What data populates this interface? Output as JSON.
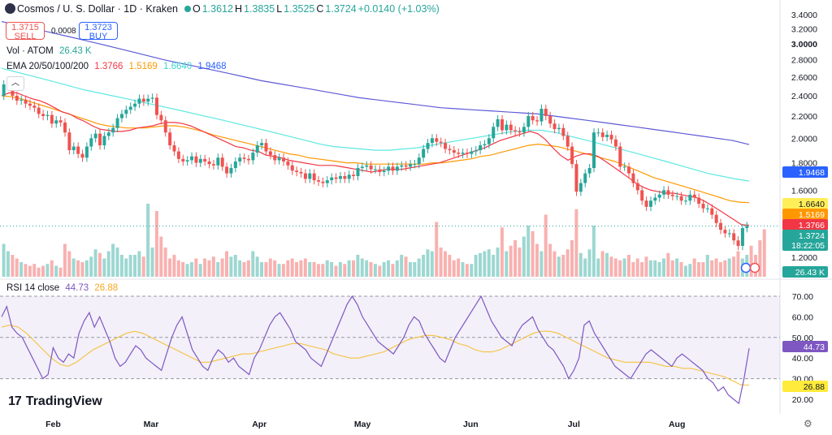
{
  "header": {
    "title": "Cosmos / U. S. Dollar · 1D · Kraken",
    "open_label": "O",
    "open": "1.3612",
    "high_label": "H",
    "high": "1.3835",
    "low_label": "L",
    "low": "1.3525",
    "close_label": "C",
    "close": "1.3724",
    "change": "+0.0140 (+1.03%)"
  },
  "trade": {
    "sell_price": "1.3715",
    "sell_label": "SELL",
    "spread": "0.0008",
    "buy_price": "1.3723",
    "buy_label": "BUY"
  },
  "indicators": {
    "vol_label": "Vol · ATOM",
    "vol_value": "26.43 K",
    "ema_label": "EMA 20/50/100/200",
    "ema20": "1.3766",
    "ema50": "1.5169",
    "ema100": "1.6640",
    "ema200": "1.9468",
    "rsi_label": "RSI 14 close",
    "rsi_value": "44.73",
    "rsi_ma": "26.88"
  },
  "price_axis": {
    "ticks": [
      "3.4000",
      "3.2000",
      "3.0000",
      "2.8000",
      "2.6000",
      "2.4000",
      "2.2000",
      "2.0000",
      "1.8000",
      "1.6000",
      "1.2000"
    ],
    "badges": [
      {
        "text": "1.9468",
        "value": 1.9468,
        "color": "#2962ff",
        "row": 0
      },
      {
        "text": "1.6640",
        "value": 1.664,
        "color": "#ffee58",
        "row": 0
      },
      {
        "text": "1.5169",
        "value": 1.5169,
        "color": "#ff9800",
        "row": 0
      },
      {
        "text": "1.3766",
        "value": 1.3766,
        "color": "#f23645",
        "row": 0
      },
      {
        "text": "1.3724",
        "value": 1.3724,
        "color": "#26a69a",
        "row": 0
      },
      {
        "text": "18:22:05",
        "value": 1.3724,
        "color": "#26a69a",
        "row": 1
      },
      {
        "text": "26.43 K",
        "value": null,
        "color": "#26a69a",
        "row": 2
      }
    ]
  },
  "rsi_axis": {
    "ticks": [
      "70.00",
      "60.00",
      "50.00",
      "40.00",
      "30.00",
      "20.00"
    ],
    "badges": [
      {
        "text": "44.73",
        "value": 44.73,
        "color": "#7e57c2"
      },
      {
        "text": "26.88",
        "value": 26.88,
        "color": "#ffeb3b"
      }
    ]
  },
  "time_axis": {
    "labels": [
      "Feb",
      "Mar",
      "Apr",
      "May",
      "Jun",
      "Jul",
      "Aug"
    ]
  },
  "colors": {
    "up": "#26a69a",
    "down": "#ef5350",
    "ema20": "#f23645",
    "ema50": "#ff9800",
    "ema100": "#5ee8e1",
    "ema200": "#5c5ad6",
    "rsi": "#7e57c2",
    "rsi_ma": "#f5c23e"
  },
  "branding": {
    "name": "TradingView"
  },
  "chart_data": {
    "type": "candlestick",
    "x_labels": [
      "Feb",
      "Mar",
      "Apr",
      "May",
      "Jun",
      "Jul",
      "Aug"
    ],
    "ylim": [
      1.15,
      3.42
    ],
    "y_scale": "log",
    "rsi_ylim": [
      15,
      75
    ],
    "rsi_levels": [
      70,
      50,
      30
    ],
    "close": [
      2.52,
      2.54,
      2.4,
      2.35,
      2.36,
      2.32,
      2.3,
      2.28,
      2.22,
      2.2,
      2.21,
      2.13,
      2.16,
      2.14,
      2.05,
      1.9,
      1.93,
      1.87,
      1.84,
      1.93,
      2.0,
      2.04,
      1.94,
      2.02,
      2.05,
      2.09,
      2.18,
      2.22,
      2.26,
      2.29,
      2.32,
      2.37,
      2.34,
      2.37,
      2.38,
      2.21,
      2.16,
      2.05,
      1.94,
      1.89,
      1.83,
      1.81,
      1.82,
      1.85,
      1.8,
      1.83,
      1.81,
      1.79,
      1.78,
      1.84,
      1.77,
      1.72,
      1.76,
      1.81,
      1.84,
      1.83,
      1.82,
      1.88,
      1.94,
      1.96,
      1.89,
      1.86,
      1.82,
      1.84,
      1.81,
      1.78,
      1.74,
      1.73,
      1.72,
      1.68,
      1.72,
      1.67,
      1.66,
      1.65,
      1.67,
      1.69,
      1.68,
      1.7,
      1.68,
      1.71,
      1.7,
      1.76,
      1.77,
      1.78,
      1.75,
      1.75,
      1.73,
      1.74,
      1.77,
      1.74,
      1.77,
      1.78,
      1.77,
      1.79,
      1.79,
      1.84,
      1.91,
      1.96,
      2.0,
      1.97,
      1.96,
      1.91,
      1.9,
      1.88,
      1.87,
      1.88,
      1.87,
      1.89,
      1.9,
      1.94,
      1.95,
      2.0,
      2.1,
      2.17,
      2.07,
      2.12,
      2.07,
      2.06,
      2.05,
      2.1,
      2.2,
      2.16,
      2.15,
      2.27,
      2.2,
      2.13,
      2.08,
      2.09,
      2.02,
      1.93,
      1.79,
      1.59,
      1.65,
      1.72,
      1.76,
      2.05,
      2.05,
      2.01,
      2.03,
      1.99,
      1.93,
      1.77,
      1.77,
      1.72,
      1.65,
      1.6,
      1.53,
      1.49,
      1.53,
      1.55,
      1.57,
      1.6,
      1.57,
      1.56,
      1.56,
      1.53,
      1.53,
      1.57,
      1.55,
      1.51,
      1.48,
      1.48,
      1.44,
      1.39,
      1.35,
      1.33,
      1.33,
      1.29,
      1.26,
      1.36,
      1.3724
    ],
    "volume_k": [
      18,
      14,
      12,
      10,
      8,
      7,
      6,
      7,
      5,
      6,
      7,
      9,
      6,
      5,
      18,
      14,
      10,
      9,
      8,
      9,
      11,
      15,
      13,
      10,
      14,
      18,
      16,
      12,
      10,
      12,
      12,
      14,
      11,
      40,
      16,
      36,
      22,
      16,
      10,
      12,
      9,
      8,
      7,
      8,
      10,
      7,
      10,
      9,
      11,
      8,
      10,
      14,
      11,
      12,
      9,
      8,
      9,
      14,
      11,
      8,
      8,
      10,
      9,
      7,
      7,
      9,
      10,
      8,
      9,
      10,
      8,
      8,
      7,
      7,
      9,
      8,
      6,
      8,
      7,
      9,
      9,
      12,
      10,
      9,
      8,
      7,
      6,
      8,
      9,
      7,
      9,
      12,
      11,
      8,
      8,
      10,
      12,
      15,
      14,
      30,
      16,
      14,
      12,
      9,
      10,
      8,
      7,
      7,
      12,
      13,
      14,
      15,
      12,
      16,
      27,
      14,
      17,
      20,
      16,
      22,
      28,
      25,
      18,
      14,
      34,
      18,
      14,
      11,
      12,
      15,
      20,
      37,
      13,
      10,
      15,
      28,
      10,
      14,
      13,
      11,
      10,
      9,
      10,
      12,
      8,
      10,
      8,
      11,
      9,
      9,
      8,
      10,
      13,
      9,
      10,
      8,
      6,
      7,
      10,
      8,
      8,
      12,
      9,
      10,
      8,
      9,
      10,
      11,
      14,
      10,
      12,
      17,
      12,
      20,
      26
    ],
    "ema20": [
      2.4,
      2.43,
      2.43,
      2.4,
      2.37,
      2.35,
      2.32,
      2.28,
      2.24,
      2.22,
      2.18,
      2.15,
      2.11,
      2.08,
      2.07,
      2.06,
      2.06,
      2.07,
      2.09,
      2.1,
      2.11,
      2.13,
      2.14,
      2.14,
      2.13,
      2.11,
      2.08,
      2.05,
      2.02,
      1.99,
      1.96,
      1.93,
      1.92,
      1.9,
      1.89,
      1.86,
      1.85,
      1.84,
      1.82,
      1.81,
      1.8,
      1.79,
      1.78,
      1.78,
      1.78,
      1.77,
      1.76,
      1.75,
      1.74,
      1.73,
      1.74,
      1.75,
      1.75,
      1.75,
      1.76,
      1.77,
      1.78,
      1.79,
      1.8,
      1.82,
      1.84,
      1.86,
      1.88,
      1.9,
      1.92,
      1.95,
      1.98,
      2.0,
      2.02,
      2.04,
      2.06,
      2.04,
      1.99,
      1.92,
      1.86,
      1.82,
      1.85,
      1.87,
      1.87,
      1.85,
      1.81,
      1.77,
      1.73,
      1.69,
      1.65,
      1.62,
      1.6,
      1.59,
      1.58,
      1.58,
      1.57,
      1.56,
      1.55,
      1.53,
      1.5,
      1.47,
      1.44,
      1.41,
      1.38,
      1.3766
    ],
    "ema50": [
      2.4,
      2.39,
      2.37,
      2.34,
      2.31,
      2.28,
      2.25,
      2.22,
      2.19,
      2.16,
      2.13,
      2.11,
      2.1,
      2.09,
      2.09,
      2.09,
      2.1,
      2.11,
      2.11,
      2.1,
      2.08,
      2.06,
      2.03,
      2.01,
      1.99,
      1.97,
      1.95,
      1.93,
      1.91,
      1.89,
      1.87,
      1.86,
      1.84,
      1.83,
      1.82,
      1.81,
      1.8,
      1.8,
      1.79,
      1.79,
      1.79,
      1.79,
      1.79,
      1.79,
      1.79,
      1.8,
      1.8,
      1.81,
      1.82,
      1.83,
      1.85,
      1.86,
      1.88,
      1.9,
      1.92,
      1.94,
      1.95,
      1.94,
      1.93,
      1.91,
      1.89,
      1.87,
      1.85,
      1.83,
      1.81,
      1.78,
      1.75,
      1.72,
      1.69,
      1.67,
      1.65,
      1.63,
      1.61,
      1.59,
      1.57,
      1.55,
      1.53,
      1.52,
      1.5169
    ],
    "ema100": [
      2.7,
      2.66,
      2.62,
      2.58,
      2.54,
      2.5,
      2.46,
      2.43,
      2.4,
      2.37,
      2.34,
      2.31,
      2.28,
      2.25,
      2.22,
      2.19,
      2.16,
      2.13,
      2.1,
      2.07,
      2.04,
      2.01,
      1.98,
      1.95,
      1.93,
      1.92,
      1.91,
      1.9,
      1.9,
      1.91,
      1.92,
      1.94,
      1.96,
      1.98,
      2.0,
      2.02,
      2.04,
      2.06,
      2.07,
      2.07,
      2.05,
      2.02,
      1.99,
      1.96,
      1.93,
      1.9,
      1.87,
      1.84,
      1.81,
      1.78,
      1.75,
      1.72,
      1.7,
      1.68,
      1.664
    ],
    "ema200": [
      3.3,
      3.25,
      3.2,
      3.15,
      3.1,
      3.05,
      3.0,
      2.95,
      2.9,
      2.85,
      2.8,
      2.76,
      2.72,
      2.68,
      2.64,
      2.6,
      2.56,
      2.53,
      2.5,
      2.47,
      2.44,
      2.41,
      2.38,
      2.36,
      2.34,
      2.32,
      2.3,
      2.28,
      2.27,
      2.26,
      2.25,
      2.24,
      2.23,
      2.22,
      2.2,
      2.18,
      2.16,
      2.14,
      2.12,
      2.1,
      2.08,
      2.06,
      2.04,
      2.02,
      2.0,
      1.98,
      1.9468
    ],
    "rsi": [
      60,
      65,
      55,
      52,
      50,
      45,
      40,
      35,
      30,
      32,
      45,
      40,
      38,
      42,
      40,
      52,
      58,
      62,
      55,
      60,
      54,
      48,
      40,
      36,
      38,
      42,
      46,
      44,
      40,
      38,
      36,
      34,
      42,
      50,
      56,
      60,
      52,
      44,
      40,
      36,
      34,
      40,
      44,
      42,
      38,
      40,
      36,
      34,
      32,
      40,
      44,
      50,
      56,
      60,
      62,
      58,
      54,
      48,
      46,
      44,
      40,
      38,
      36,
      42,
      48,
      54,
      60,
      66,
      70,
      66,
      60,
      56,
      52,
      48,
      46,
      44,
      42,
      46,
      50,
      56,
      60,
      58,
      52,
      48,
      44,
      40,
      38,
      44,
      50,
      54,
      58,
      62,
      66,
      70,
      64,
      58,
      54,
      50,
      48,
      46,
      52,
      56,
      58,
      60,
      54,
      50,
      46,
      44,
      40,
      36,
      30,
      34,
      40,
      56,
      58,
      52,
      48,
      44,
      40,
      36,
      34,
      32,
      30,
      34,
      38,
      42,
      44,
      42,
      40,
      38,
      36,
      40,
      42,
      40,
      38,
      36,
      34,
      30,
      28,
      24,
      26,
      22,
      20,
      18,
      30,
      44.73
    ],
    "rsi_ma": [
      55,
      56,
      55,
      52,
      48,
      44,
      40,
      37,
      36,
      38,
      41,
      44,
      46,
      48,
      50,
      52,
      53,
      52,
      50,
      48,
      46,
      44,
      42,
      40,
      38,
      38,
      39,
      40,
      41,
      42,
      42,
      43,
      44,
      45,
      46,
      47,
      47,
      46,
      45,
      44,
      42,
      41,
      40,
      40,
      41,
      42,
      43,
      45,
      47,
      49,
      50,
      51,
      51,
      50,
      49,
      47,
      46,
      44,
      43,
      43,
      44,
      46,
      48,
      50,
      52,
      53,
      53,
      52,
      50,
      48,
      46,
      44,
      42,
      40,
      39,
      38,
      38,
      38,
      38,
      37,
      36,
      36,
      35,
      35,
      34,
      33,
      32,
      31,
      29,
      27,
      26.88
    ]
  }
}
